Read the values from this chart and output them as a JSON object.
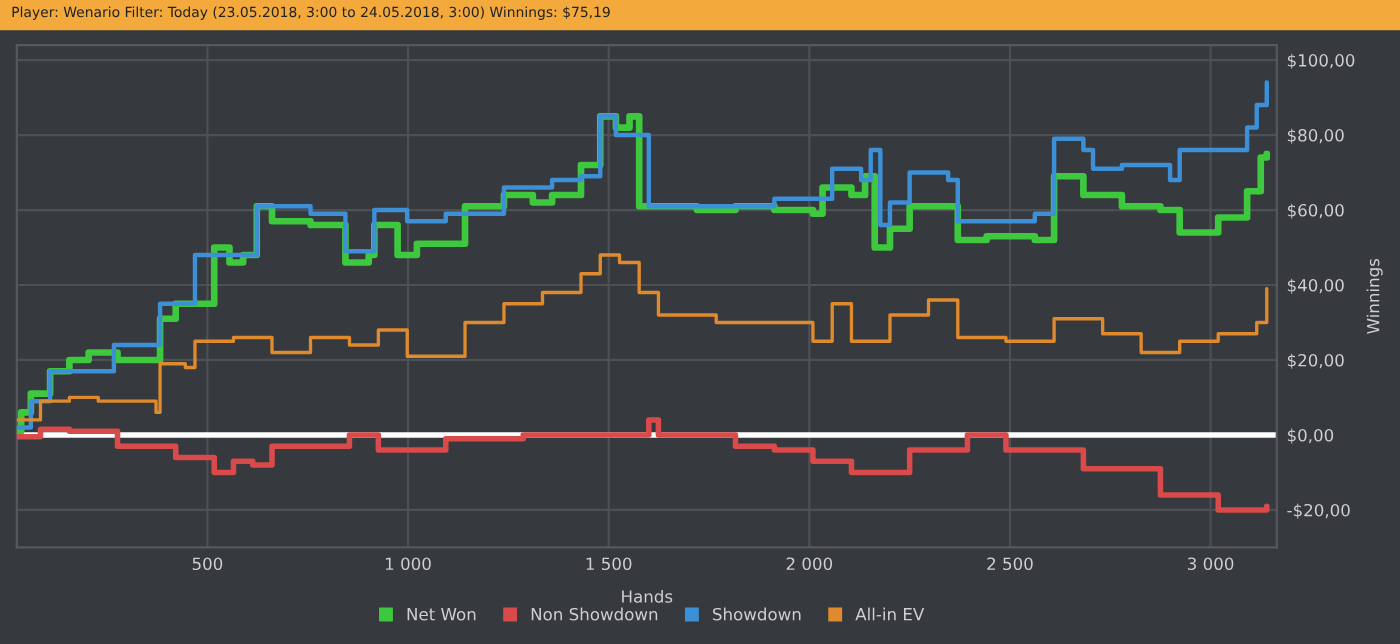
{
  "chart_data": {
    "type": "step",
    "title": "Player: Wenario Filter: Today (23.05.2018, 3:00 to 24.05.2018, 3:00) Winnings: $75,19",
    "xlabel": "Hands",
    "ylabel": "Winnings",
    "xlim": [
      25,
      3165
    ],
    "xticks": [
      {
        "value": 500,
        "label": "500"
      },
      {
        "value": 1000,
        "label": "1 000"
      },
      {
        "value": 1500,
        "label": "1 500"
      },
      {
        "value": 2000,
        "label": "2 000"
      },
      {
        "value": 2500,
        "label": "2 500"
      },
      {
        "value": 3000,
        "label": "3 000"
      }
    ],
    "ylim": [
      -30,
      104
    ],
    "yticks": [
      {
        "value": -20,
        "label": "-$20,00"
      },
      {
        "value": 0,
        "label": "$0,00"
      },
      {
        "value": 20,
        "label": "$20,00"
      },
      {
        "value": 40,
        "label": "$40,00"
      },
      {
        "value": 60,
        "label": "$60,00"
      },
      {
        "value": 80,
        "label": "$80,00"
      },
      {
        "value": 100,
        "label": "$100,00"
      }
    ],
    "grid": true,
    "legend": "bottom",
    "ref_lines": [
      {
        "axis": "y",
        "value": 0,
        "color": "#ffffff"
      }
    ],
    "series": [
      {
        "name": "Net Won",
        "color": "#3ec83e",
        "x": [
          26,
          36,
          60,
          108,
          156,
          204,
          276,
          372,
          382,
          421,
          469,
          517,
          555,
          589,
          623,
          661,
          757,
          830,
          844,
          902,
          916,
          974,
          1022,
          1142,
          1239,
          1311,
          1359,
          1431,
          1479,
          1518,
          1552,
          1576,
          1720,
          1816,
          1913,
          2009,
          2033,
          2105,
          2139,
          2163,
          2201,
          2250,
          2346,
          2370,
          2442,
          2562,
          2610,
          2683,
          2779,
          2875,
          2923,
          3019,
          3091,
          3125,
          3140
        ],
        "values": [
          1,
          6,
          11,
          17,
          20,
          22,
          20,
          20,
          31,
          35,
          35,
          50,
          46,
          48,
          61,
          57,
          56,
          56,
          46,
          48,
          56,
          48,
          51,
          61,
          64,
          62,
          64,
          72,
          85,
          82,
          85,
          61,
          60,
          61,
          60,
          59,
          66,
          64,
          69,
          50,
          55,
          61,
          61,
          52,
          53,
          52,
          69,
          64,
          61,
          60,
          54,
          58,
          65,
          74,
          75
        ]
      },
      {
        "name": "Non Showdown",
        "color": "#d94a4a",
        "x": [
          26,
          84,
          156,
          276,
          421,
          517,
          565,
          613,
          661,
          854,
          926,
          1022,
          1094,
          1287,
          1431,
          1600,
          1624,
          1816,
          1913,
          2009,
          2105,
          2250,
          2394,
          2490,
          2683,
          2875,
          3019,
          3140
        ],
        "values": [
          -0.5,
          1.5,
          1,
          -3,
          -6,
          -10,
          -7,
          -8,
          -3,
          0,
          -4,
          -4,
          -1,
          0,
          0,
          4,
          0,
          -3,
          -4,
          -7,
          -10,
          -4,
          0,
          -4,
          -9,
          -16,
          -20,
          -19
        ]
      },
      {
        "name": "Showdown",
        "color": "#3d8fd6",
        "x": [
          26,
          60,
          108,
          252,
          267,
          372,
          382,
          445,
          469,
          613,
          623,
          757,
          830,
          844,
          902,
          916,
          998,
          1094,
          1239,
          1359,
          1431,
          1479,
          1518,
          1576,
          1600,
          1913,
          2033,
          2057,
          2129,
          2153,
          2177,
          2201,
          2250,
          2346,
          2370,
          2562,
          2610,
          2683,
          2707,
          2779,
          2899,
          2923,
          3067,
          3091,
          3115,
          3140
        ],
        "values": [
          2,
          9,
          17,
          17,
          24,
          24,
          35,
          35,
          48,
          48,
          61,
          59,
          59,
          49,
          49,
          60,
          57,
          59,
          66,
          68,
          69,
          85,
          80,
          80,
          61,
          63,
          63,
          71,
          68,
          76,
          56,
          62,
          70,
          68,
          57,
          59,
          79,
          76,
          71,
          72,
          68,
          76,
          76,
          82,
          88,
          94
        ]
      },
      {
        "name": "All-in EV",
        "color": "#e08a2e",
        "x": [
          26,
          84,
          156,
          228,
          276,
          372,
          382,
          445,
          469,
          565,
          661,
          757,
          854,
          926,
          998,
          1142,
          1239,
          1335,
          1431,
          1479,
          1527,
          1576,
          1624,
          1768,
          1913,
          2009,
          2057,
          2105,
          2201,
          2297,
          2370,
          2490,
          2610,
          2731,
          2827,
          2923,
          3019,
          3115,
          3140
        ],
        "values": [
          4,
          9,
          10,
          9,
          9,
          6,
          19,
          18,
          25,
          26,
          22,
          26,
          24,
          28,
          21,
          30,
          35,
          38,
          43,
          48,
          46,
          38,
          32,
          30,
          30,
          25,
          35,
          25,
          32,
          36,
          26,
          25,
          31,
          27,
          22,
          25,
          27,
          30,
          39
        ]
      }
    ]
  }
}
